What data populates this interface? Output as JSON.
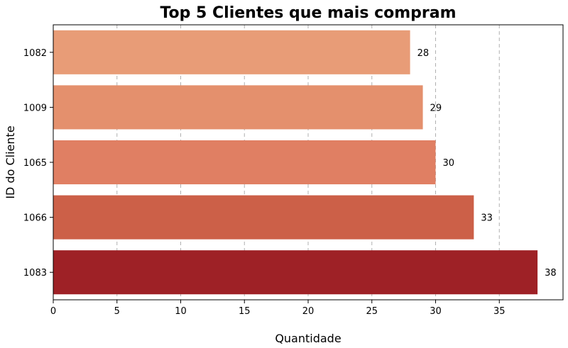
{
  "chart_data": {
    "type": "bar",
    "orientation": "horizontal",
    "title": "Top 5 Clientes que mais compram",
    "xlabel": "Quantidade",
    "ylabel": "ID do Cliente",
    "categories": [
      "1082",
      "1009",
      "1065",
      "1066",
      "1083"
    ],
    "values": [
      28,
      29,
      30,
      33,
      38
    ],
    "colors": [
      "#e89c77",
      "#e4906d",
      "#e07f63",
      "#cc6048",
      "#9e2126"
    ],
    "xlim": [
      0,
      40
    ],
    "xticks": [
      0,
      5,
      10,
      15,
      20,
      25,
      30,
      35
    ],
    "grid": "x-dashed"
  }
}
